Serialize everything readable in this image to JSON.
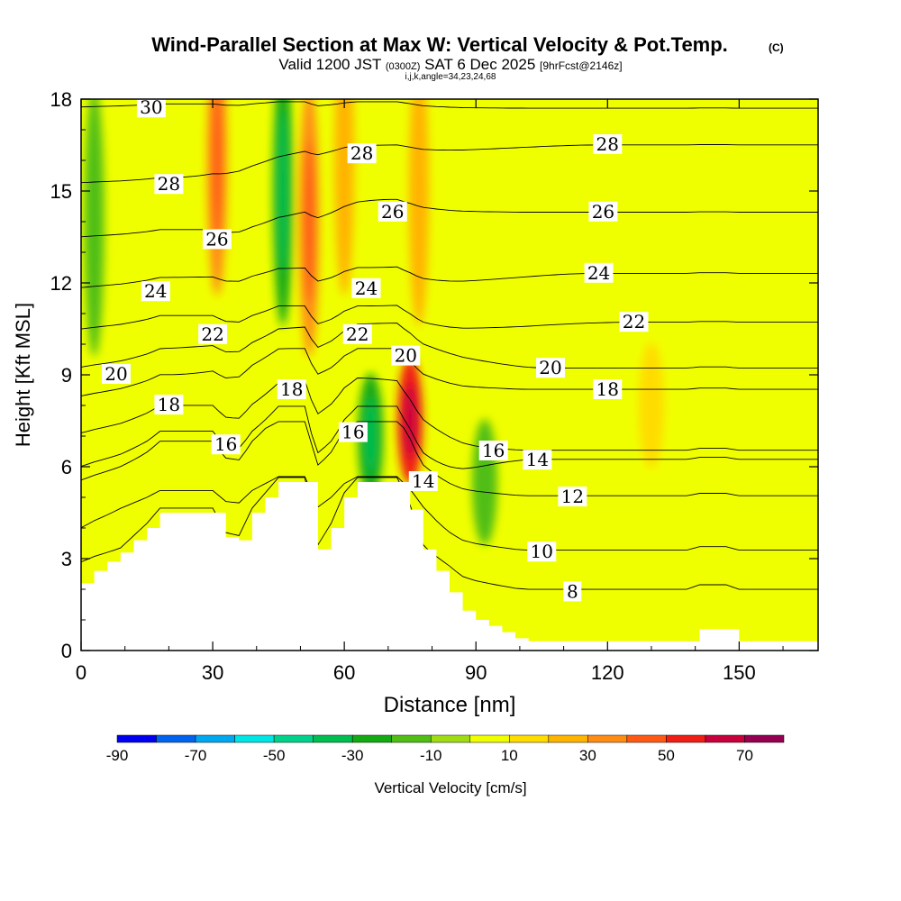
{
  "header": {
    "title": "Wind-Parallel Section at Max W: Vertical Velocity & Pot.Temp.",
    "title_mark": "(C)",
    "valid_prefix": "Valid 1200 JST",
    "valid_utc": "(0300Z)",
    "valid_date": "SAT 6 Dec 2025",
    "forecast": "[9hrFcst@2146z]",
    "indices": "i,j,k,angle=34,23,24,68"
  },
  "chart_data": {
    "type": "contour",
    "xlabel": "Distance [nm]",
    "ylabel": "Height [Kft MSL]",
    "xlim": [
      0,
      168
    ],
    "ylim": [
      0,
      18
    ],
    "x_ticks": [
      0,
      30,
      60,
      90,
      120,
      150
    ],
    "y_ticks": [
      0,
      3,
      6,
      9,
      12,
      15,
      18
    ],
    "colorbar": {
      "label": "Vertical Velocity [cm/s]",
      "tick_labels": [
        "-90",
        "-70",
        "-50",
        "-30",
        "-10",
        "10",
        "30",
        "50",
        "70"
      ],
      "tick_values": [
        -90,
        -70,
        -50,
        -30,
        -10,
        10,
        30,
        50,
        70
      ],
      "boundaries": [
        -90,
        -80,
        -70,
        -60,
        -50,
        -40,
        -30,
        -20,
        -10,
        0,
        10,
        20,
        30,
        40,
        50,
        60,
        70,
        80
      ],
      "colors": [
        "#0000f0",
        "#0064f0",
        "#00a8f0",
        "#00e6e6",
        "#00d28c",
        "#00be50",
        "#14aa14",
        "#50be14",
        "#a0dc14",
        "#f0ff00",
        "#ffdc00",
        "#ffb400",
        "#ff8c14",
        "#ff5a14",
        "#f01e14",
        "#c8003c",
        "#960050"
      ]
    },
    "theta_contours": [
      {
        "label": "8",
        "x": 112,
        "y": 1.9
      },
      {
        "label": "10",
        "x": 105,
        "y": 3.2
      },
      {
        "label": "12",
        "x": 112,
        "y": 5.0
      },
      {
        "label": "14",
        "x": 78,
        "y": 5.5
      },
      {
        "label": "14",
        "x": 104,
        "y": 6.2
      },
      {
        "label": "16",
        "x": 33,
        "y": 6.7
      },
      {
        "label": "16",
        "x": 62,
        "y": 7.1
      },
      {
        "label": "16",
        "x": 94,
        "y": 6.5
      },
      {
        "label": "18",
        "x": 20,
        "y": 8.0
      },
      {
        "label": "18",
        "x": 48,
        "y": 8.5
      },
      {
        "label": "18",
        "x": 120,
        "y": 8.5
      },
      {
        "label": "20",
        "x": 8,
        "y": 9.0
      },
      {
        "label": "20",
        "x": 74,
        "y": 9.6
      },
      {
        "label": "20",
        "x": 107,
        "y": 9.2
      },
      {
        "label": "22",
        "x": 30,
        "y": 10.3
      },
      {
        "label": "22",
        "x": 63,
        "y": 10.3
      },
      {
        "label": "22",
        "x": 126,
        "y": 10.7
      },
      {
        "label": "24",
        "x": 17,
        "y": 11.7
      },
      {
        "label": "24",
        "x": 65,
        "y": 11.8
      },
      {
        "label": "24",
        "x": 118,
        "y": 12.3
      },
      {
        "label": "26",
        "x": 31,
        "y": 13.4
      },
      {
        "label": "26",
        "x": 71,
        "y": 14.3
      },
      {
        "label": "26",
        "x": 119,
        "y": 14.3
      },
      {
        "label": "28",
        "x": 20,
        "y": 15.2
      },
      {
        "label": "28",
        "x": 64,
        "y": 16.2
      },
      {
        "label": "28",
        "x": 120,
        "y": 16.5
      },
      {
        "label": "30",
        "x": 16,
        "y": 17.7
      }
    ],
    "terrain_kft": [
      [
        0,
        2.2
      ],
      [
        3,
        2.6
      ],
      [
        6,
        2.9
      ],
      [
        9,
        3.2
      ],
      [
        12,
        3.6
      ],
      [
        15,
        4.0
      ],
      [
        18,
        4.5
      ],
      [
        30,
        4.5
      ],
      [
        33,
        3.7
      ],
      [
        36,
        3.6
      ],
      [
        39,
        4.5
      ],
      [
        42,
        5.0
      ],
      [
        45,
        5.5
      ],
      [
        51,
        5.5
      ],
      [
        54,
        3.3
      ],
      [
        57,
        4.0
      ],
      [
        60,
        5.0
      ],
      [
        63,
        5.5
      ],
      [
        72,
        5.5
      ],
      [
        75,
        4.6
      ],
      [
        78,
        3.3
      ],
      [
        81,
        2.6
      ],
      [
        84,
        1.9
      ],
      [
        87,
        1.3
      ],
      [
        90,
        1.0
      ],
      [
        93,
        0.8
      ],
      [
        96,
        0.6
      ],
      [
        99,
        0.4
      ],
      [
        102,
        0.3
      ],
      [
        138,
        0.3
      ],
      [
        141,
        0.7
      ],
      [
        147,
        0.7
      ],
      [
        150,
        0.3
      ],
      [
        168,
        0.3
      ]
    ],
    "vertical_velocity_features": [
      {
        "x": 3,
        "y": 14,
        "w_cm_s": -20
      },
      {
        "x": 31,
        "y": 16,
        "w_cm_s": 30
      },
      {
        "x": 46,
        "y": 15,
        "w_cm_s": -30
      },
      {
        "x": 52,
        "y": 14,
        "w_cm_s": 30
      },
      {
        "x": 60,
        "y": 16,
        "w_cm_s": 20
      },
      {
        "x": 66,
        "y": 7,
        "w_cm_s": -30
      },
      {
        "x": 75,
        "y": 7.5,
        "w_cm_s": 50
      },
      {
        "x": 77,
        "y": 15,
        "w_cm_s": 20
      },
      {
        "x": 92,
        "y": 5.5,
        "w_cm_s": -20
      },
      {
        "x": 130,
        "y": 8,
        "w_cm_s": 10
      }
    ]
  }
}
